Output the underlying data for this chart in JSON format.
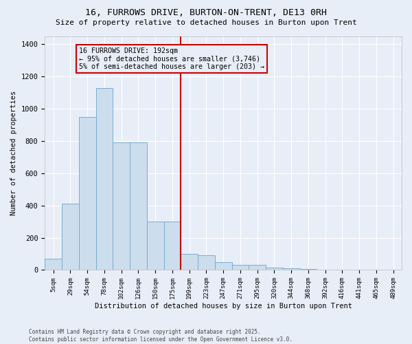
{
  "title1": "16, FURROWS DRIVE, BURTON-ON-TRENT, DE13 0RH",
  "title2": "Size of property relative to detached houses in Burton upon Trent",
  "xlabel": "Distribution of detached houses by size in Burton upon Trent",
  "ylabel": "Number of detached properties",
  "categories": [
    "5sqm",
    "29sqm",
    "54sqm",
    "78sqm",
    "102sqm",
    "126sqm",
    "150sqm",
    "175sqm",
    "199sqm",
    "223sqm",
    "247sqm",
    "271sqm",
    "295sqm",
    "320sqm",
    "344sqm",
    "368sqm",
    "392sqm",
    "416sqm",
    "441sqm",
    "465sqm",
    "489sqm"
  ],
  "values": [
    70,
    410,
    950,
    1130,
    790,
    790,
    300,
    300,
    100,
    90,
    50,
    30,
    30,
    15,
    10,
    5,
    2,
    1,
    0,
    0,
    0
  ],
  "bar_color": "#ccdded",
  "bar_edge_color": "#7aadcc",
  "bg_color": "#e8eef8",
  "grid_color": "#ffffff",
  "vline_x_index": 8,
  "vline_color": "#cc0000",
  "annotation_text": "16 FURROWS DRIVE: 192sqm\n← 95% of detached houses are smaller (3,746)\n5% of semi-detached houses are larger (203) →",
  "annotation_box_color": "#cc0000",
  "ylim": [
    0,
    1450
  ],
  "yticks": [
    0,
    200,
    400,
    600,
    800,
    1000,
    1200,
    1400
  ],
  "footnote": "Contains HM Land Registry data © Crown copyright and database right 2025.\nContains public sector information licensed under the Open Government Licence v3.0."
}
